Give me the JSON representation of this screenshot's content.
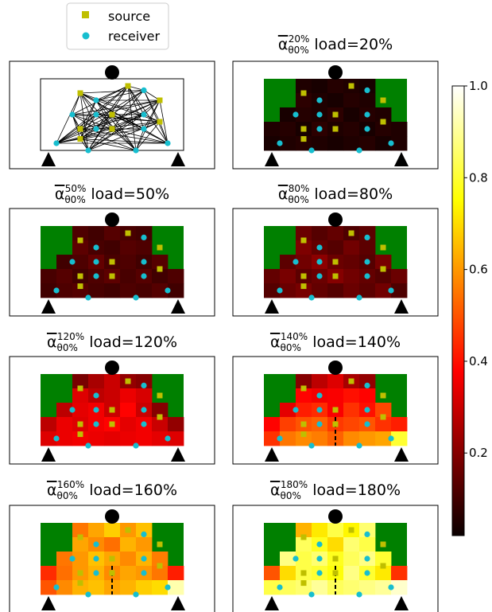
{
  "chart_data": {
    "type": "heatmap",
    "legend": {
      "placement": "top-left",
      "entries": [
        {
          "label": "source",
          "marker": "square",
          "color": "#bfbf00"
        },
        {
          "label": "receiver",
          "marker": "circle",
          "color": "#17becf"
        }
      ]
    },
    "colorbar": {
      "colormap": "hot",
      "range": [
        0.02,
        1.0
      ],
      "ticks": [
        "0.2",
        "0.4",
        "0.6",
        "0.8",
        "1.0"
      ],
      "tick_values": [
        0.2,
        0.4,
        0.6,
        0.8,
        1.0
      ]
    },
    "colors": {
      "background": "#008000",
      "source": "#bfbf00",
      "receiver": "#17becf",
      "frame": "#000000"
    },
    "grid": {
      "cols": 9,
      "rows": 5,
      "column_tops": [
        3,
        2,
        0,
        0,
        0,
        0,
        0,
        2,
        3
      ]
    },
    "sources": [
      [
        2.5,
        1.0
      ],
      [
        5.5,
        0.5
      ],
      [
        7.5,
        1.5
      ],
      [
        2.5,
        3.5
      ],
      [
        4.5,
        2.5
      ],
      [
        4.5,
        3.5
      ],
      [
        7.5,
        3.0
      ],
      [
        2.5,
        4.2
      ]
    ],
    "receivers": [
      [
        1.0,
        4.5
      ],
      [
        2.0,
        2.5
      ],
      [
        3.5,
        1.5
      ],
      [
        3.5,
        2.5
      ],
      [
        3.5,
        3.5
      ],
      [
        6.5,
        0.8
      ],
      [
        6.5,
        2.5
      ],
      [
        6.5,
        3.5
      ],
      [
        8.0,
        4.5
      ],
      [
        3.0,
        5.0
      ],
      [
        6.0,
        5.0
      ]
    ],
    "panels": [
      {
        "name": "layout",
        "title_stat": "",
        "title_load": "",
        "crack": false,
        "values": []
      },
      {
        "name": "load-20",
        "title_stat": "α",
        "title_sub": "θ0%",
        "title_sup": "20%",
        "title_load": "load=20%",
        "crack": false,
        "values": [
          [
            0,
            0,
            0.05,
            0.04,
            0.06,
            0.05,
            0.04,
            0,
            0
          ],
          [
            0,
            0,
            0.07,
            0.05,
            0.04,
            0.06,
            0.05,
            0,
            0
          ],
          [
            0,
            0.04,
            0.06,
            0.05,
            0.07,
            0.04,
            0.06,
            0.05,
            0
          ],
          [
            0.05,
            0.06,
            0.04,
            0.07,
            0.05,
            0.06,
            0.04,
            0.06,
            0.05
          ],
          [
            0.04,
            0.05,
            0.06,
            0.05,
            0.04,
            0.05,
            0.06,
            0.04,
            0.05
          ]
        ]
      },
      {
        "name": "load-50",
        "title_stat": "α",
        "title_sub": "θ0%",
        "title_sup": "50%",
        "title_load": "load=50%",
        "crack": false,
        "values": [
          [
            0,
            0,
            0.12,
            0.1,
            0.13,
            0.11,
            0.1,
            0,
            0
          ],
          [
            0,
            0,
            0.14,
            0.11,
            0.1,
            0.13,
            0.12,
            0,
            0
          ],
          [
            0,
            0.1,
            0.12,
            0.15,
            0.11,
            0.12,
            0.1,
            0.13,
            0
          ],
          [
            0.11,
            0.13,
            0.1,
            0.12,
            0.14,
            0.11,
            0.13,
            0.1,
            0.12
          ],
          [
            0.1,
            0.12,
            0.13,
            0.11,
            0.1,
            0.12,
            0.11,
            0.13,
            0.1
          ]
        ]
      },
      {
        "name": "load-80",
        "title_stat": "α",
        "title_sub": "θ0%",
        "title_sup": "80%",
        "title_load": "load=80%",
        "crack": false,
        "values": [
          [
            0,
            0,
            0.16,
            0.13,
            0.15,
            0.12,
            0.14,
            0,
            0
          ],
          [
            0,
            0,
            0.19,
            0.15,
            0.13,
            0.17,
            0.14,
            0,
            0
          ],
          [
            0,
            0.14,
            0.17,
            0.21,
            0.16,
            0.15,
            0.13,
            0.18,
            0
          ],
          [
            0.15,
            0.18,
            0.14,
            0.16,
            0.2,
            0.17,
            0.15,
            0.13,
            0.16
          ],
          [
            0.13,
            0.16,
            0.18,
            0.15,
            0.13,
            0.16,
            0.14,
            0.17,
            0.12
          ]
        ]
      },
      {
        "name": "load-120",
        "title_stat": "α",
        "title_sub": "θ0%",
        "title_sup": "120%",
        "title_load": "load=120%",
        "crack": false,
        "values": [
          [
            0,
            0,
            0.18,
            0.25,
            0.3,
            0.22,
            0.2,
            0,
            0
          ],
          [
            0,
            0,
            0.33,
            0.28,
            0.3,
            0.35,
            0.32,
            0,
            0
          ],
          [
            0,
            0.28,
            0.34,
            0.36,
            0.3,
            0.38,
            0.3,
            0.2,
            0
          ],
          [
            0.28,
            0.35,
            0.33,
            0.36,
            0.38,
            0.34,
            0.36,
            0.3,
            0.22
          ],
          [
            0.33,
            0.35,
            0.36,
            0.35,
            0.34,
            0.35,
            0.36,
            0.34,
            0.33
          ]
        ]
      },
      {
        "name": "load-140",
        "title_stat": "α",
        "title_sub": "θ0%",
        "title_sup": "140%",
        "title_load": "load=140%",
        "crack": true,
        "values": [
          [
            0,
            0,
            0.2,
            0.28,
            0.33,
            0.25,
            0.22,
            0,
            0
          ],
          [
            0,
            0,
            0.38,
            0.36,
            0.37,
            0.4,
            0.38,
            0,
            0
          ],
          [
            0,
            0.34,
            0.42,
            0.44,
            0.37,
            0.45,
            0.4,
            0.48,
            0
          ],
          [
            0.38,
            0.47,
            0.5,
            0.52,
            0.46,
            0.48,
            0.5,
            0.45,
            0.42
          ],
          [
            0.45,
            0.55,
            0.58,
            0.56,
            0.52,
            0.58,
            0.6,
            0.62,
            0.8
          ]
        ]
      },
      {
        "name": "load-160",
        "title_stat": "α",
        "title_sub": "θ0%",
        "title_sup": "160%",
        "title_load": "load=160%",
        "crack": true,
        "values": [
          [
            0,
            0,
            0.55,
            0.62,
            0.68,
            0.6,
            0.66,
            0,
            0
          ],
          [
            0,
            0,
            0.62,
            0.58,
            0.54,
            0.64,
            0.6,
            0,
            0
          ],
          [
            0,
            0.55,
            0.6,
            0.66,
            0.62,
            0.58,
            0.64,
            0.56,
            0
          ],
          [
            0.44,
            0.54,
            0.6,
            0.64,
            0.58,
            0.62,
            0.6,
            0.55,
            0.42
          ],
          [
            0.5,
            0.58,
            0.64,
            0.66,
            0.62,
            0.64,
            0.68,
            0.7,
            0.92
          ]
        ]
      },
      {
        "name": "load-180",
        "title_stat": "α",
        "title_sub": "θ0%",
        "title_sup": "180%",
        "title_load": "load=180%",
        "crack": true,
        "values": [
          [
            0,
            0,
            0.64,
            0.72,
            0.82,
            0.74,
            0.86,
            0,
            0
          ],
          [
            0,
            0,
            0.84,
            0.78,
            0.7,
            0.86,
            0.82,
            0,
            0
          ],
          [
            0,
            0.88,
            0.82,
            0.86,
            0.78,
            0.84,
            0.88,
            0.8,
            0
          ],
          [
            0.5,
            0.7,
            0.82,
            0.8,
            0.76,
            0.88,
            0.8,
            0.72,
            0.45
          ],
          [
            0.82,
            0.84,
            0.86,
            0.9,
            0.84,
            0.86,
            0.88,
            0.9,
            0.95
          ]
        ]
      }
    ]
  }
}
